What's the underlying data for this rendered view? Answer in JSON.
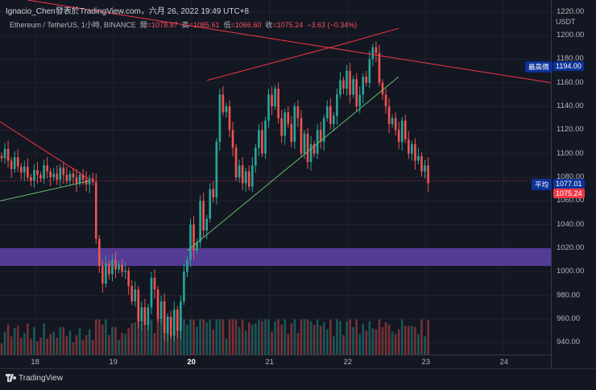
{
  "header": {
    "credit": "Ignacio_Chen發表於TradingView.com，六月 26, 2022 19:49 UTC+8",
    "symbol": "Ethereum / TetherUS, 1小時, BINANCE",
    "ohlc": [
      {
        "key": "開",
        "value": "=1078.87"
      },
      {
        "key": "高",
        "value": "=1085.61"
      },
      {
        "key": "低",
        "value": "=1066.60"
      },
      {
        "key": "收",
        "value": "=1075.24"
      }
    ],
    "change": "−3.63 (−0.34%)"
  },
  "price_scale": {
    "currency": "USDT",
    "tags": {
      "high_label": "最高價",
      "high_value": "1194.00",
      "avg_label": "平均",
      "avg_value": "1077.01",
      "last_value": "1075.24"
    }
  },
  "footer": {
    "brand": "TradingView"
  },
  "colors": {
    "up": "#26a69a",
    "down": "#ef5350",
    "zone": "#5b3fa3",
    "trendline": "#f23645",
    "support_line": "#66bb6a"
  },
  "chart_data": {
    "type": "candlestick",
    "title": "Ethereum / TetherUS, 1小時, BINANCE",
    "ylim": [
      930,
      1230
    ],
    "y_ticks": [
      940,
      960,
      980,
      1000,
      1020,
      1040,
      1060,
      1080,
      1100,
      1120,
      1140,
      1160,
      1180,
      1200,
      1220
    ],
    "x_ticks": [
      "18",
      "19",
      "20",
      "21",
      "22",
      "23",
      "24"
    ],
    "x_ticks_bold": [
      "20"
    ],
    "x_range_days": [
      17.55,
      24.6
    ],
    "candles_start_day": 17.55,
    "candle_hours": 1,
    "closes": [
      1096,
      1104,
      1094,
      1087,
      1097,
      1089,
      1084,
      1089,
      1080,
      1077,
      1086,
      1082,
      1079,
      1090,
      1085,
      1080,
      1083,
      1078,
      1088,
      1082,
      1077,
      1083,
      1080,
      1075,
      1082,
      1078,
      1074,
      1079,
      1076,
      1028,
      1005,
      990,
      1007,
      998,
      1010,
      1002,
      1006,
      1000,
      1001,
      988,
      975,
      985,
      958,
      970,
      955,
      970,
      995,
      985,
      960,
      975,
      948,
      962,
      946,
      968,
      950,
      975,
      1000,
      1010,
      1040,
      1018,
      1025,
      1060,
      1035,
      1045,
      1070,
      1063,
      1110,
      1150,
      1135,
      1140,
      1120,
      1105,
      1080,
      1090,
      1075,
      1085,
      1072,
      1090,
      1105,
      1120,
      1100,
      1128,
      1150,
      1140,
      1155,
      1130,
      1115,
      1135,
      1125,
      1110,
      1140,
      1130,
      1100,
      1117,
      1093,
      1108,
      1100,
      1120,
      1110,
      1130,
      1140,
      1125,
      1132,
      1150,
      1162,
      1155,
      1170,
      1150,
      1163,
      1140,
      1150,
      1165,
      1160,
      1180,
      1190,
      1185,
      1160,
      1150,
      1140,
      1125,
      1130,
      1120,
      1110,
      1128,
      1112,
      1100,
      1108,
      1094,
      1098,
      1085,
      1090,
      1075
    ],
    "zone": {
      "label": "support zone",
      "low": 1005,
      "high": 1020,
      "from_day": 17.55,
      "to_day": 24.6
    },
    "lines": [
      {
        "name": "triangle upper",
        "from": [
          17.55,
          1127
        ],
        "to": [
          18.7,
          1078
        ]
      },
      {
        "name": "triangle lower",
        "from": [
          17.55,
          1060
        ],
        "to": [
          18.7,
          1077
        ]
      },
      {
        "name": "channel upper",
        "from": [
          20.2,
          1162
        ],
        "to": [
          21.9,
          1192
        ]
      },
      {
        "name": "channel extension",
        "from": [
          21.9,
          1192
        ],
        "to": [
          22.65,
          1206
        ]
      },
      {
        "name": "channel support",
        "from": [
          19.95,
          1018
        ],
        "to": [
          22.65,
          1165
        ]
      },
      {
        "name": "macro resistance",
        "from": [
          17.9,
          1230
        ],
        "to": [
          24.6,
          1160
        ]
      }
    ],
    "avg_line": 1077.01,
    "high_marker": 1194.0,
    "last_price": 1075.24,
    "volume_peak_ratio": 0.85
  }
}
